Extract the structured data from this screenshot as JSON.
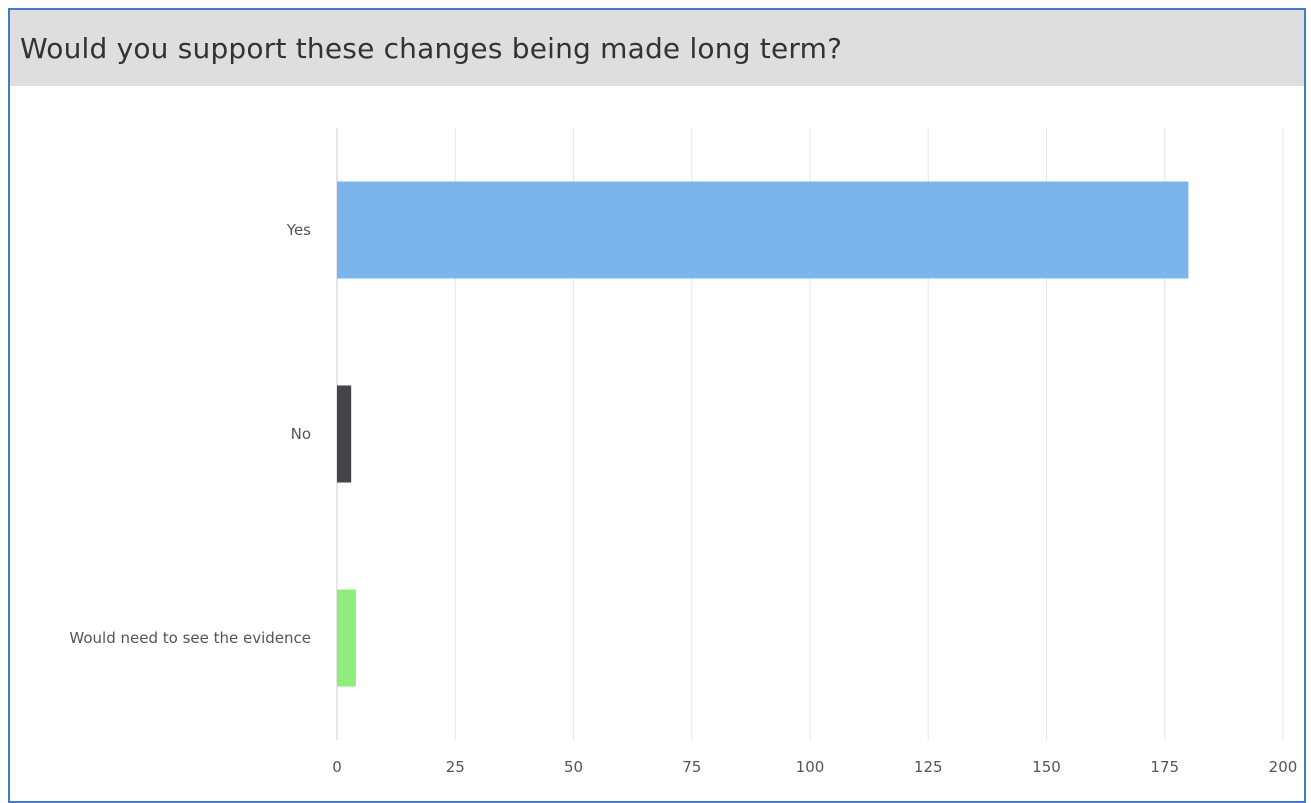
{
  "title": "Would you support these changes being made long term?",
  "chart_data": {
    "type": "bar",
    "orientation": "horizontal",
    "title": "Would you support these changes being made long term?",
    "categories": [
      "Yes",
      "No",
      "Would need to see the evidence"
    ],
    "values": [
      180,
      3,
      4
    ],
    "colors": [
      "#7cb5ec",
      "#434348",
      "#90ed7d"
    ],
    "xlim": [
      0,
      200
    ],
    "ticks": [
      0,
      25,
      50,
      75,
      100,
      125,
      150,
      175,
      200
    ],
    "grid": true,
    "xlabel": "",
    "ylabel": ""
  }
}
